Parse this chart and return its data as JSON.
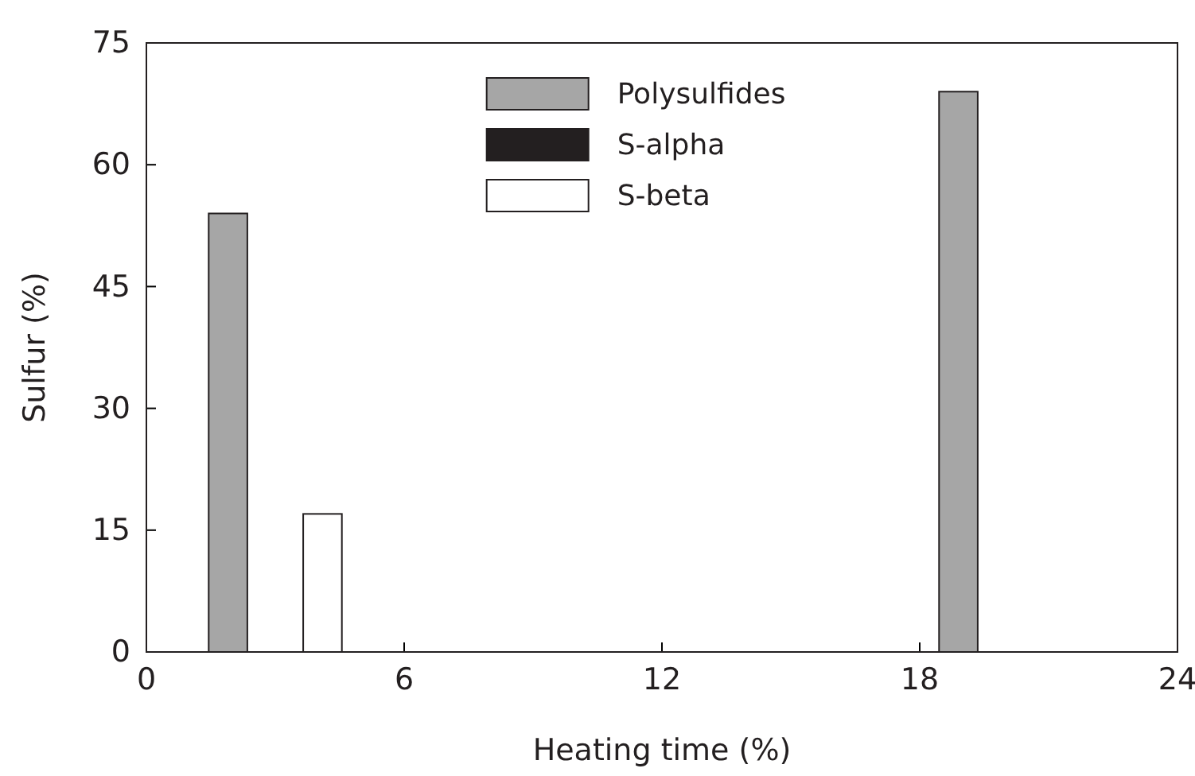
{
  "chart_data": {
    "type": "bar",
    "xlabel": "Heating time (%)",
    "ylabel": "Sulfur (%)",
    "x": [
      3,
      20
    ],
    "series": [
      {
        "name": "Polysulfides",
        "color": "#a6a6a6",
        "values": [
          54,
          69
        ]
      },
      {
        "name": "S-alpha",
        "color": "#231f20",
        "values": [
          0,
          0
        ]
      },
      {
        "name": "S-beta",
        "color": "#ffffff",
        "values": [
          17,
          0
        ]
      }
    ],
    "xlim": [
      0,
      24
    ],
    "xticks": [
      0,
      6,
      12,
      18,
      24
    ],
    "ylim": [
      0,
      75
    ],
    "yticks": [
      0,
      15,
      30,
      45,
      60,
      75
    ],
    "grid": false,
    "legend": "top"
  }
}
